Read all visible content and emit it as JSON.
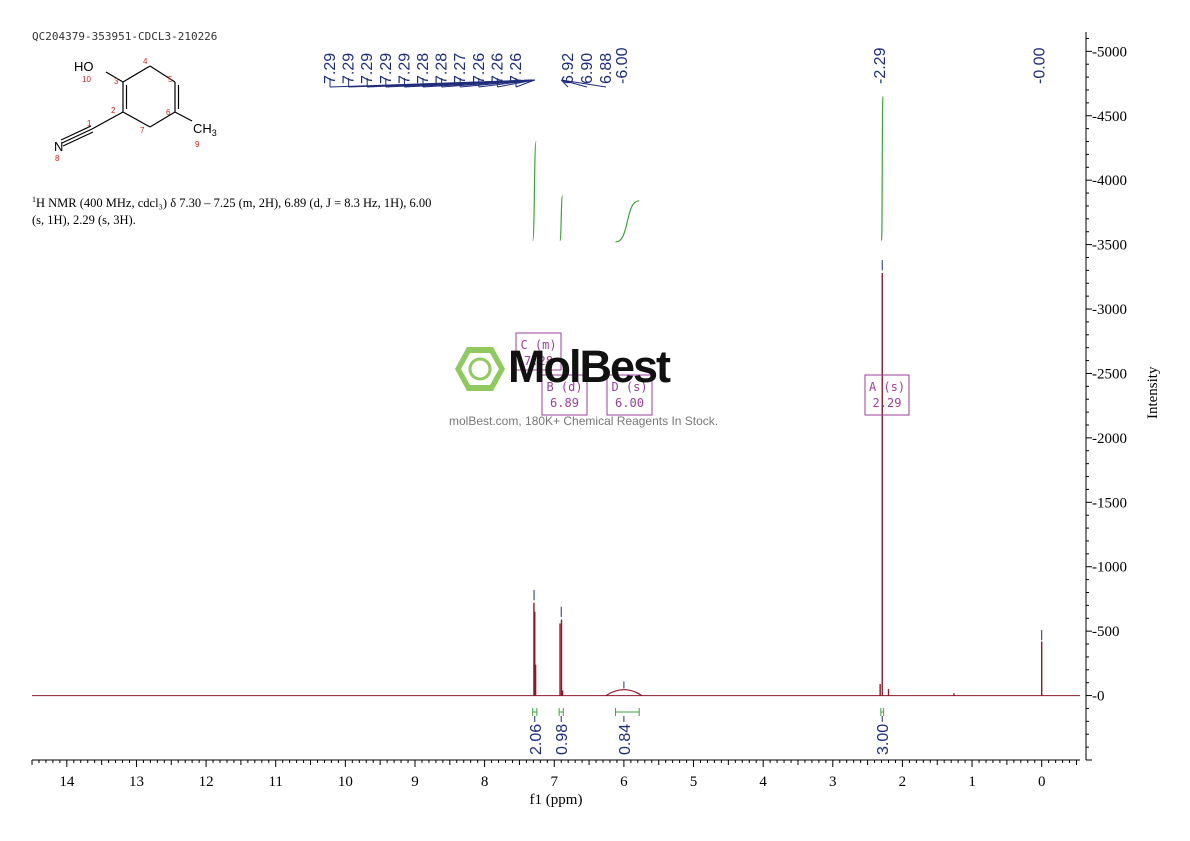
{
  "header": {
    "sample_id": "QC204379-353951-CDCL3-210226"
  },
  "nmr_description": {
    "nucleus": "1",
    "text": "H NMR (400 MHz, cdcl₃) δ 7.30 – 7.25 (m, 2H), 6.89 (d, J = 8.3 Hz, 1H), 6.00 (s, 1H), 2.29 (s, 3H)."
  },
  "molecule": {
    "labels": {
      "ho": "HO",
      "n": "N",
      "ch3": "CH",
      "ch3_sub": "3"
    },
    "atom_numbers": [
      "1",
      "2",
      "3",
      "4",
      "5",
      "6",
      "7",
      "8",
      "9",
      "10"
    ]
  },
  "watermark": {
    "brand": "MolBest",
    "tagline": "molBest.com, 180K+ Chemical Reagents In Stock."
  },
  "colors": {
    "spectrum": "#8b1a2b",
    "peak_labels": "#1f2d7a",
    "integral": "#3ea23e",
    "multiplet_box": "#9b3f9b",
    "axis": "#000000",
    "brand_green": "#7bc043",
    "atom_numbers": "#cc2222"
  },
  "chart_data": {
    "type": "line",
    "xlabel": "f1 (ppm)",
    "ylabel": "Intensity",
    "xlim": [
      14.5,
      -0.55
    ],
    "ylim": [
      -500,
      5150
    ],
    "x_reversed": true,
    "x_ticks": [
      14,
      13,
      12,
      11,
      10,
      9,
      8,
      7,
      6,
      5,
      4,
      3,
      2,
      1,
      0
    ],
    "y_ticks": [
      0,
      500,
      1000,
      1500,
      2000,
      2500,
      3000,
      3500,
      4000,
      4500,
      5000
    ],
    "peak_labels": [
      "7.29",
      "7.29",
      "7.29",
      "7.29",
      "7.29",
      "7.28",
      "7.28",
      "7.27",
      "7.26",
      "7.26",
      "7.26",
      "6.92",
      "6.90",
      "6.88",
      "6.00",
      "2.29",
      "0.00"
    ],
    "peaks": [
      {
        "x": 7.292,
        "y": 720
      },
      {
        "x": 7.28,
        "y": 650
      },
      {
        "x": 7.268,
        "y": 240
      },
      {
        "x": 6.917,
        "y": 560
      },
      {
        "x": 6.896,
        "y": 590
      },
      {
        "x": 6.88,
        "y": 40
      },
      {
        "x": 6.0,
        "y": 45
      },
      {
        "x": 2.29,
        "y": 3280
      },
      {
        "x": 2.32,
        "y": 90
      },
      {
        "x": 2.2,
        "y": 50
      },
      {
        "x": 1.26,
        "y": 18
      },
      {
        "x": 0.0,
        "y": 420
      }
    ],
    "integrals": [
      {
        "value": "2.06",
        "center": 7.28,
        "from": 7.31,
        "to": 7.25
      },
      {
        "value": "0.98",
        "center": 6.9,
        "from": 6.93,
        "to": 6.87
      },
      {
        "value": "0.84",
        "center": 6.0,
        "from": 6.12,
        "to": 5.78
      },
      {
        "value": "3.00",
        "center": 2.29,
        "from": 2.31,
        "to": 2.27
      }
    ],
    "multiplets": [
      {
        "letter": "C",
        "type": "(m)",
        "shift": "7.28"
      },
      {
        "letter": "B",
        "type": "(d)",
        "shift": "6.89"
      },
      {
        "letter": "D",
        "type": "(s)",
        "shift": "6.00"
      },
      {
        "letter": "A",
        "type": "(s)",
        "shift": "2.29"
      }
    ]
  }
}
